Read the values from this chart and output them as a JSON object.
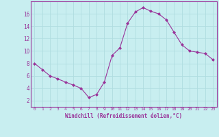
{
  "x": [
    0,
    1,
    2,
    3,
    4,
    5,
    6,
    7,
    8,
    9,
    10,
    11,
    12,
    13,
    14,
    15,
    16,
    17,
    18,
    19,
    20,
    21,
    22,
    23
  ],
  "y": [
    8.0,
    7.0,
    6.0,
    5.5,
    5.0,
    4.5,
    4.0,
    2.5,
    3.0,
    5.0,
    9.3,
    10.5,
    14.5,
    16.3,
    17.0,
    16.4,
    16.0,
    15.0,
    13.0,
    11.0,
    10.0,
    9.8,
    9.6,
    8.6
  ],
  "line_color": "#993399",
  "marker": "D",
  "marker_size": 2,
  "bg_color": "#c8eef0",
  "grid_color": "#b0dde0",
  "xlabel": "Windchill (Refroidissement éolien,°C)",
  "xlabel_color": "#993399",
  "tick_color": "#993399",
  "spine_color": "#993399",
  "ylim": [
    1,
    18
  ],
  "xlim": [
    -0.5,
    23.5
  ],
  "yticks": [
    2,
    4,
    6,
    8,
    10,
    12,
    14,
    16
  ],
  "xticks": [
    0,
    1,
    2,
    3,
    4,
    5,
    6,
    7,
    8,
    9,
    10,
    11,
    12,
    13,
    14,
    15,
    16,
    17,
    18,
    19,
    20,
    21,
    22,
    23
  ]
}
